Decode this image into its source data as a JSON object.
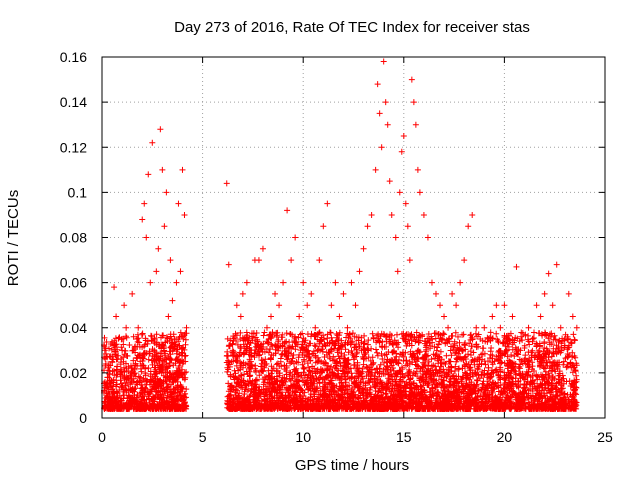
{
  "chart_data": {
    "type": "scatter",
    "title": "Day 273 of 2016, Rate Of TEC Index for receiver stas",
    "xlabel": "GPS time / hours",
    "ylabel": "ROTI / TECUs",
    "xlim": [
      0,
      25
    ],
    "ylim": [
      0,
      0.16
    ],
    "xticks": [
      0,
      5,
      10,
      15,
      20,
      25
    ],
    "xtick_labels": [
      "0",
      "5",
      "10",
      "15",
      "20",
      "25"
    ],
    "yticks": [
      0,
      0.02,
      0.04,
      0.06,
      0.08,
      0.1,
      0.12,
      0.14,
      0.16
    ],
    "ytick_labels": [
      "0",
      "0.02",
      "0.04",
      "0.06",
      "0.08",
      "0.1",
      "0.12",
      "0.14",
      "0.16"
    ],
    "grid": true,
    "marker": "+",
    "color": "#ff0000",
    "series": [
      {
        "name": "ROTI",
        "points": [
          [
            0.1,
            0.012
          ],
          [
            0.3,
            0.018
          ],
          [
            0.5,
            0.025
          ],
          [
            0.6,
            0.058
          ],
          [
            0.7,
            0.045
          ],
          [
            0.9,
            0.02
          ],
          [
            1.0,
            0.03
          ],
          [
            1.1,
            0.05
          ],
          [
            1.2,
            0.04
          ],
          [
            1.4,
            0.015
          ],
          [
            1.5,
            0.055
          ],
          [
            1.6,
            0.022
          ],
          [
            1.8,
            0.04
          ],
          [
            1.9,
            0.018
          ],
          [
            2.0,
            0.088
          ],
          [
            2.1,
            0.095
          ],
          [
            2.2,
            0.08
          ],
          [
            2.3,
            0.108
          ],
          [
            2.4,
            0.06
          ],
          [
            2.5,
            0.122
          ],
          [
            2.6,
            0.03
          ],
          [
            2.7,
            0.065
          ],
          [
            2.8,
            0.075
          ],
          [
            2.9,
            0.128
          ],
          [
            3.0,
            0.11
          ],
          [
            3.1,
            0.085
          ],
          [
            3.2,
            0.1
          ],
          [
            3.3,
            0.045
          ],
          [
            3.4,
            0.07
          ],
          [
            3.5,
            0.052
          ],
          [
            3.6,
            0.035
          ],
          [
            3.7,
            0.06
          ],
          [
            3.8,
            0.095
          ],
          [
            3.9,
            0.065
          ],
          [
            4.0,
            0.11
          ],
          [
            4.1,
            0.09
          ],
          [
            4.2,
            0.04
          ],
          [
            6.2,
            0.104
          ],
          [
            6.3,
            0.068
          ],
          [
            6.5,
            0.03
          ],
          [
            6.7,
            0.05
          ],
          [
            6.9,
            0.045
          ],
          [
            7.0,
            0.055
          ],
          [
            7.2,
            0.06
          ],
          [
            7.4,
            0.025
          ],
          [
            7.6,
            0.07
          ],
          [
            7.8,
            0.07
          ],
          [
            8.0,
            0.075
          ],
          [
            8.2,
            0.04
          ],
          [
            8.4,
            0.045
          ],
          [
            8.6,
            0.055
          ],
          [
            8.8,
            0.05
          ],
          [
            9.0,
            0.06
          ],
          [
            9.2,
            0.092
          ],
          [
            9.4,
            0.07
          ],
          [
            9.6,
            0.08
          ],
          [
            9.8,
            0.045
          ],
          [
            10.0,
            0.06
          ],
          [
            10.2,
            0.05
          ],
          [
            10.4,
            0.055
          ],
          [
            10.6,
            0.04
          ],
          [
            10.8,
            0.07
          ],
          [
            11.0,
            0.085
          ],
          [
            11.2,
            0.095
          ],
          [
            11.4,
            0.05
          ],
          [
            11.6,
            0.06
          ],
          [
            11.8,
            0.045
          ],
          [
            12.0,
            0.055
          ],
          [
            12.2,
            0.04
          ],
          [
            12.4,
            0.06
          ],
          [
            12.6,
            0.05
          ],
          [
            12.8,
            0.065
          ],
          [
            13.0,
            0.075
          ],
          [
            13.2,
            0.085
          ],
          [
            13.4,
            0.09
          ],
          [
            13.6,
            0.11
          ],
          [
            13.7,
            0.148
          ],
          [
            13.8,
            0.135
          ],
          [
            13.9,
            0.12
          ],
          [
            14.0,
            0.158
          ],
          [
            14.1,
            0.14
          ],
          [
            14.2,
            0.13
          ],
          [
            14.3,
            0.105
          ],
          [
            14.4,
            0.09
          ],
          [
            14.6,
            0.08
          ],
          [
            14.7,
            0.065
          ],
          [
            14.8,
            0.1
          ],
          [
            14.9,
            0.118
          ],
          [
            15.0,
            0.125
          ],
          [
            15.1,
            0.095
          ],
          [
            15.2,
            0.085
          ],
          [
            15.3,
            0.07
          ],
          [
            15.4,
            0.15
          ],
          [
            15.5,
            0.14
          ],
          [
            15.6,
            0.13
          ],
          [
            15.7,
            0.11
          ],
          [
            15.8,
            0.1
          ],
          [
            16.0,
            0.09
          ],
          [
            16.2,
            0.08
          ],
          [
            16.4,
            0.06
          ],
          [
            16.6,
            0.055
          ],
          [
            16.8,
            0.05
          ],
          [
            17.0,
            0.045
          ],
          [
            17.2,
            0.04
          ],
          [
            17.4,
            0.055
          ],
          [
            17.6,
            0.05
          ],
          [
            17.8,
            0.06
          ],
          [
            18.0,
            0.07
          ],
          [
            18.2,
            0.085
          ],
          [
            18.4,
            0.09
          ],
          [
            18.6,
            0.04
          ],
          [
            18.8,
            0.035
          ],
          [
            19.0,
            0.04
          ],
          [
            19.2,
            0.035
          ],
          [
            19.4,
            0.045
          ],
          [
            19.6,
            0.05
          ],
          [
            19.8,
            0.04
          ],
          [
            20.0,
            0.05
          ],
          [
            20.2,
            0.035
          ],
          [
            20.4,
            0.045
          ],
          [
            20.6,
            0.067
          ],
          [
            20.8,
            0.03
          ],
          [
            21.0,
            0.025
          ],
          [
            21.2,
            0.04
          ],
          [
            21.4,
            0.035
          ],
          [
            21.6,
            0.05
          ],
          [
            21.8,
            0.045
          ],
          [
            22.0,
            0.055
          ],
          [
            22.2,
            0.064
          ],
          [
            22.4,
            0.05
          ],
          [
            22.6,
            0.068
          ],
          [
            22.8,
            0.04
          ],
          [
            23.0,
            0.035
          ],
          [
            23.2,
            0.055
          ],
          [
            23.4,
            0.045
          ],
          [
            23.6,
            0.04
          ]
        ]
      }
    ]
  }
}
